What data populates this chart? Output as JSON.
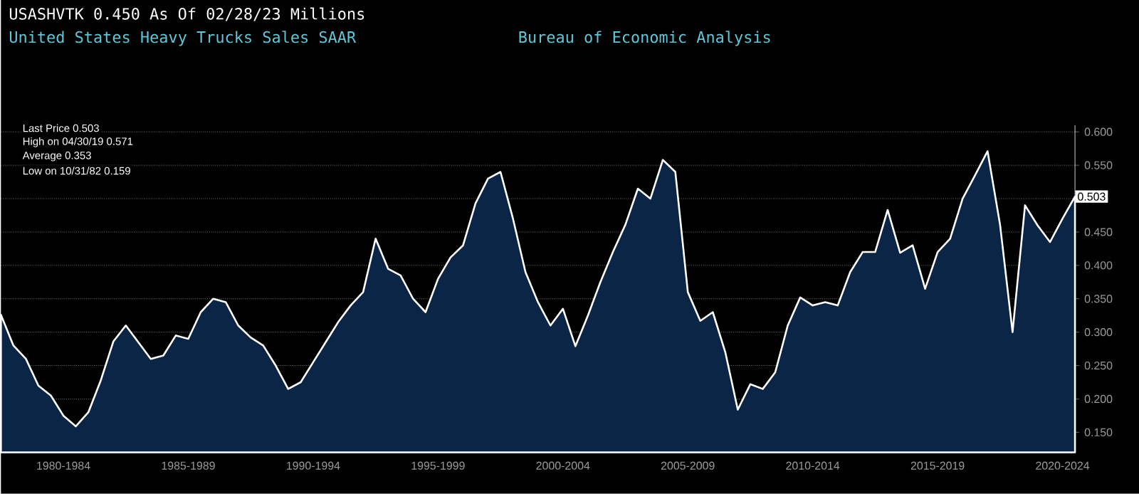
{
  "chart_data": {
    "type": "area",
    "title": "United States Heavy Trucks Sales SAAR",
    "subtitle": "USASHVTK 0.450 As Of 02/28/23 Millions",
    "annotations": [
      "Bureau of Economic Analysis",
      "Last Price 0.503",
      "High on 04/30/19 0.571",
      "Average 0.353",
      "Low on 10/31/82 0.159",
      {
        "text": "0.503",
        "y": 0.503
      }
    ],
    "categories": [
      null,
      null,
      null,
      null,
      null,
      "1980-1984",
      null,
      null,
      null,
      null,
      null,
      null,
      null,
      null,
      null,
      "1985-1989",
      null,
      null,
      null,
      null,
      null,
      null,
      null,
      null,
      null,
      "1990-1994",
      null,
      null,
      null,
      null,
      null,
      null,
      null,
      null,
      null,
      "1995-1999",
      null,
      null,
      null,
      null,
      null,
      null,
      null,
      null,
      null,
      "2000-2004",
      null,
      null,
      null,
      null,
      null,
      null,
      null,
      null,
      null,
      "2005-2009",
      null,
      null,
      null,
      null,
      null,
      null,
      null,
      null,
      null,
      "2010-2014",
      null,
      null,
      null,
      null,
      null,
      null,
      null,
      null,
      null,
      "2015-2019",
      null,
      null,
      null,
      null,
      null,
      null,
      null,
      null,
      null,
      "2020-2024",
      null
    ],
    "series": [
      {
        "color": "#0b2547",
        "values": [
          0.326,
          0.28,
          0.26,
          0.22,
          0.205,
          0.175,
          0.159,
          0.18,
          0.228,
          0.286,
          0.31,
          0.285,
          0.26,
          0.265,
          0.295,
          0.29,
          0.33,
          0.35,
          0.345,
          0.31,
          0.292,
          0.28,
          0.25,
          0.215,
          0.225,
          0.255,
          0.285,
          0.315,
          0.34,
          0.36,
          0.44,
          0.395,
          0.385,
          0.35,
          0.33,
          0.38,
          0.412,
          0.43,
          0.493,
          0.53,
          0.54,
          0.47,
          0.39,
          0.345,
          0.31,
          0.335,
          0.279,
          0.325,
          0.375,
          0.42,
          0.461,
          0.515,
          0.5,
          0.558,
          0.54,
          0.36,
          0.317,
          0.33,
          0.27,
          0.184,
          0.222,
          0.215,
          0.24,
          0.31,
          0.352,
          0.34,
          0.345,
          0.34,
          0.39,
          0.42,
          0.42,
          0.483,
          0.419,
          0.43,
          0.365,
          0.42,
          0.44,
          0.5,
          0.535,
          0.571,
          0.461,
          0.3,
          0.49,
          0.46,
          0.435,
          0.47,
          0.503
        ]
      }
    ],
    "ylim": [
      0.12,
      0.61
    ],
    "yticks": [
      {
        "value": 0.15,
        "label": "0.150"
      },
      {
        "value": 0.2,
        "label": "0.200"
      },
      {
        "value": 0.25,
        "label": "0.250"
      },
      {
        "value": 0.3,
        "label": "0.300"
      },
      {
        "value": 0.35,
        "label": "0.350"
      },
      {
        "value": 0.4,
        "label": "0.400"
      },
      {
        "value": 0.45,
        "label": "0.450"
      },
      {
        "value": 0.5,
        "label": null
      },
      {
        "value": 0.55,
        "label": "0.550"
      },
      {
        "value": 0.6,
        "label": "0.600"
      }
    ],
    "grid": "y"
  }
}
